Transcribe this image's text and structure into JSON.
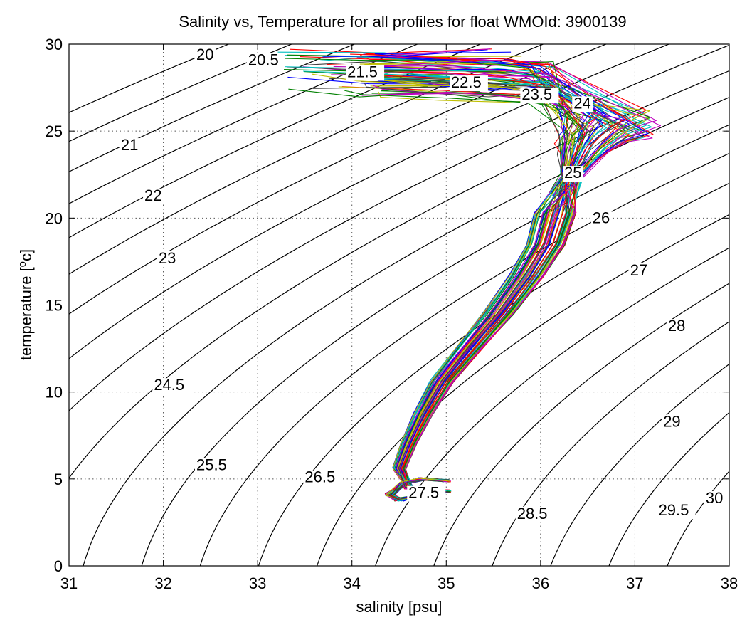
{
  "chart_data": {
    "type": "line",
    "title": "Salinity vs, Temperature for all profiles for float WMOId: 3900139",
    "xlabel": "salinity [psu]",
    "ylabel_prefix": "temperature [",
    "ylabel_sup": "o",
    "ylabel_suffix": "c]",
    "xlim": [
      31,
      38
    ],
    "ylim": [
      0,
      30
    ],
    "x_ticks": [
      "31",
      "32",
      "33",
      "34",
      "35",
      "36",
      "37",
      "38"
    ],
    "y_ticks": [
      "0",
      "5",
      "10",
      "15",
      "20",
      "25",
      "30"
    ],
    "grid": true,
    "colors": {
      "profiles": [
        "#0000ff",
        "#008000",
        "#ff0000",
        "#00bfbf",
        "#bf00bf",
        "#bfbf00",
        "#404040"
      ],
      "isopycnal": "#000000"
    },
    "isopycnals": [
      {
        "sigma": 20,
        "label": "20",
        "label_at": [
          32.35,
          29.1
        ]
      },
      {
        "sigma": 20.5,
        "label": "20.5",
        "label_at": [
          32.9,
          28.8
        ]
      },
      {
        "sigma": 21,
        "label": "21",
        "label_at": [
          31.55,
          23.9
        ]
      },
      {
        "sigma": 21.5,
        "label": "21.5",
        "label_at": [
          33.95,
          28.1
        ]
      },
      {
        "sigma": 22,
        "label": "22",
        "label_at": [
          31.8,
          21.0
        ]
      },
      {
        "sigma": 22.5,
        "label": "22.5",
        "label_at": [
          35.05,
          27.5
        ]
      },
      {
        "sigma": 23,
        "label": "23",
        "label_at": [
          31.95,
          17.4
        ]
      },
      {
        "sigma": 23.5,
        "label": "23.5",
        "label_at": [
          35.8,
          26.8
        ]
      },
      {
        "sigma": 24,
        "label": "24",
        "label_at": [
          36.35,
          26.3
        ]
      },
      {
        "sigma": 24.5,
        "label": "24.5",
        "label_at": [
          31.9,
          10.1
        ]
      },
      {
        "sigma": 25,
        "label": "25",
        "label_at": [
          36.25,
          22.3
        ]
      },
      {
        "sigma": 25.5,
        "label": "25.5",
        "label_at": [
          32.35,
          5.5
        ]
      },
      {
        "sigma": 26,
        "label": "26",
        "label_at": [
          36.55,
          19.7
        ]
      },
      {
        "sigma": 26.5,
        "label": "26.5",
        "label_at": [
          33.5,
          4.8
        ]
      },
      {
        "sigma": 27,
        "label": "27",
        "label_at": [
          36.95,
          16.7
        ]
      },
      {
        "sigma": 27.5,
        "label": "27.5",
        "label_at": [
          34.6,
          3.9
        ]
      },
      {
        "sigma": 28,
        "label": "28",
        "label_at": [
          37.35,
          13.5
        ]
      },
      {
        "sigma": 28.5,
        "label": "28.5",
        "label_at": [
          35.75,
          2.7
        ]
      },
      {
        "sigma": 29,
        "label": "29",
        "label_at": [
          37.3,
          8.0
        ]
      },
      {
        "sigma": 29.5,
        "label": "29.5",
        "label_at": [
          37.25,
          2.9
        ]
      },
      {
        "sigma": 30,
        "label": "30",
        "label_at": [
          37.75,
          3.6
        ]
      }
    ],
    "profile_count": 70,
    "profile_template": [
      [
        35.0,
        4.9
      ],
      [
        34.75,
        5.0
      ],
      [
        34.55,
        4.75
      ],
      [
        34.4,
        4.1
      ],
      [
        34.5,
        3.8
      ],
      [
        34.75,
        4.05
      ],
      [
        35.0,
        4.3
      ],
      [
        34.6,
        4.5
      ],
      [
        34.5,
        5.6
      ],
      [
        34.6,
        7.0
      ],
      [
        34.75,
        8.7
      ],
      [
        34.95,
        10.6
      ],
      [
        35.25,
        12.6
      ],
      [
        35.55,
        14.5
      ],
      [
        35.85,
        16.7
      ],
      [
        36.05,
        18.5
      ],
      [
        36.15,
        20.3
      ],
      [
        36.2,
        22.3
      ],
      [
        36.2,
        23.8
      ],
      [
        36.15,
        25.0
      ],
      [
        36.1,
        26.1
      ],
      [
        36.0,
        27.0
      ],
      [
        35.6,
        27.6
      ],
      [
        35.0,
        27.9
      ],
      [
        34.2,
        28.2
      ],
      [
        33.5,
        28.4
      ]
    ]
  }
}
